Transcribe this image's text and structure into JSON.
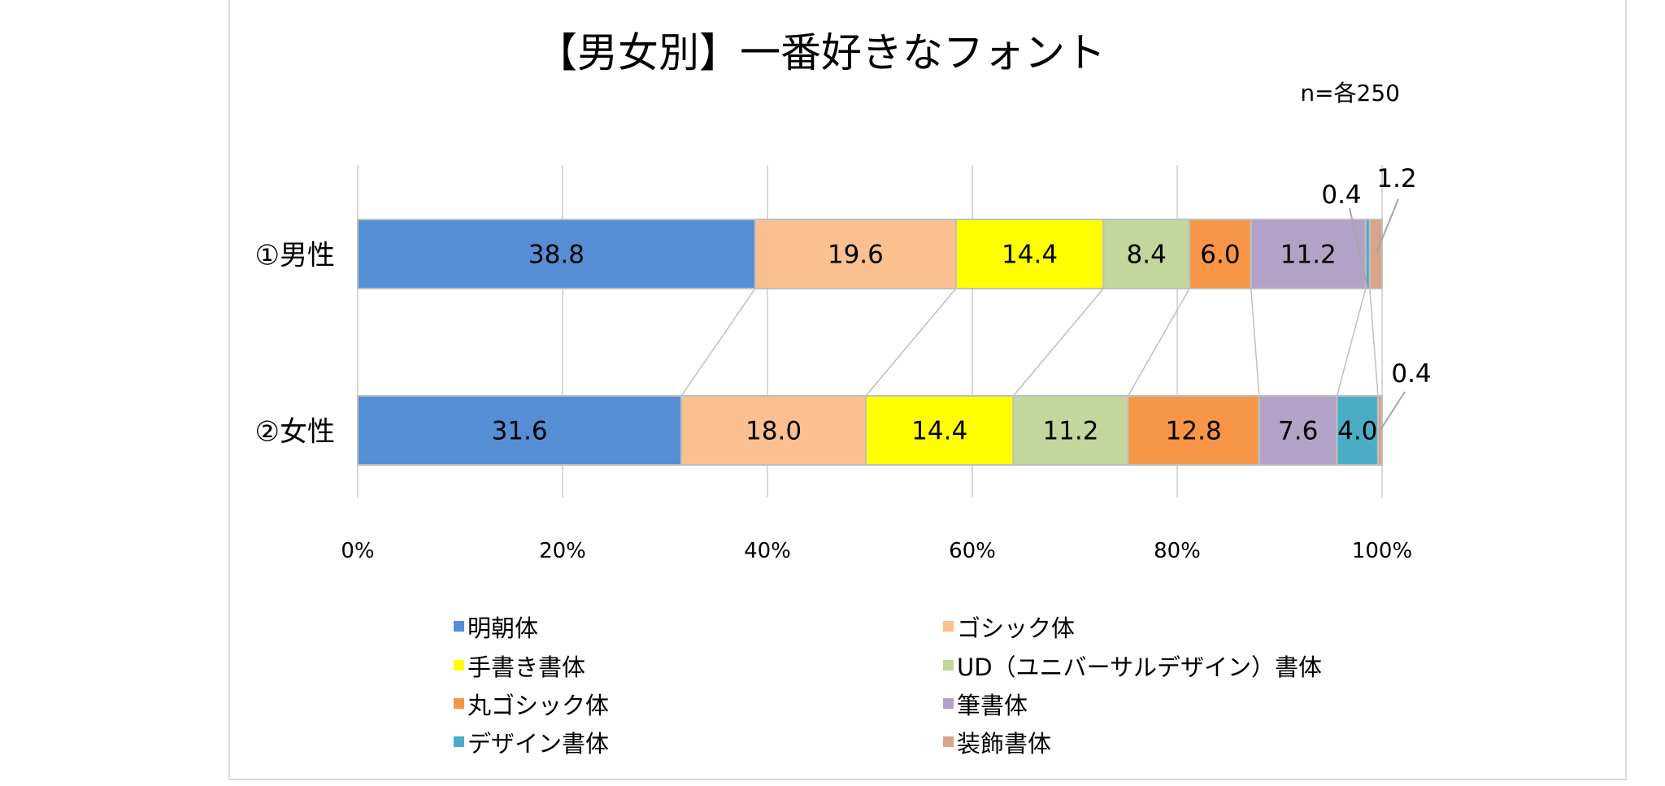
{
  "chart_data": {
    "type": "bar",
    "orientation": "horizontal",
    "stacked": "percent",
    "title": "【男女別】一番好きなフォント",
    "subtitle": "n=各250",
    "categories": [
      "①男性",
      "②女性"
    ],
    "series": [
      {
        "name": "明朝体",
        "color": "#558ED5",
        "values": [
          38.8,
          31.6
        ]
      },
      {
        "name": "ゴシック体",
        "color": "#FAC090",
        "values": [
          19.6,
          18.0
        ]
      },
      {
        "name": "手書き書体",
        "color": "#FFFF00",
        "values": [
          14.4,
          14.4
        ]
      },
      {
        "name": "UD（ユニバーサルデザイン）書体",
        "color": "#C3D69B",
        "values": [
          8.4,
          11.2
        ]
      },
      {
        "name": "丸ゴシック体",
        "color": "#F79646",
        "values": [
          6.0,
          12.8
        ]
      },
      {
        "name": "筆書体",
        "color": "#B3A2C7",
        "values": [
          11.2,
          7.6
        ]
      },
      {
        "name": "デザイン書体",
        "color": "#4BACC6",
        "values": [
          0.4,
          4.0
        ]
      },
      {
        "name": "装飾書体",
        "color": "#D9A38A",
        "values": [
          1.2,
          0.4
        ]
      }
    ],
    "xticks": [
      "0%",
      "20%",
      "40%",
      "60%",
      "80%",
      "100%"
    ],
    "xlim": [
      0,
      100
    ],
    "grid": true,
    "series_lines": true,
    "legend": "bottom"
  }
}
